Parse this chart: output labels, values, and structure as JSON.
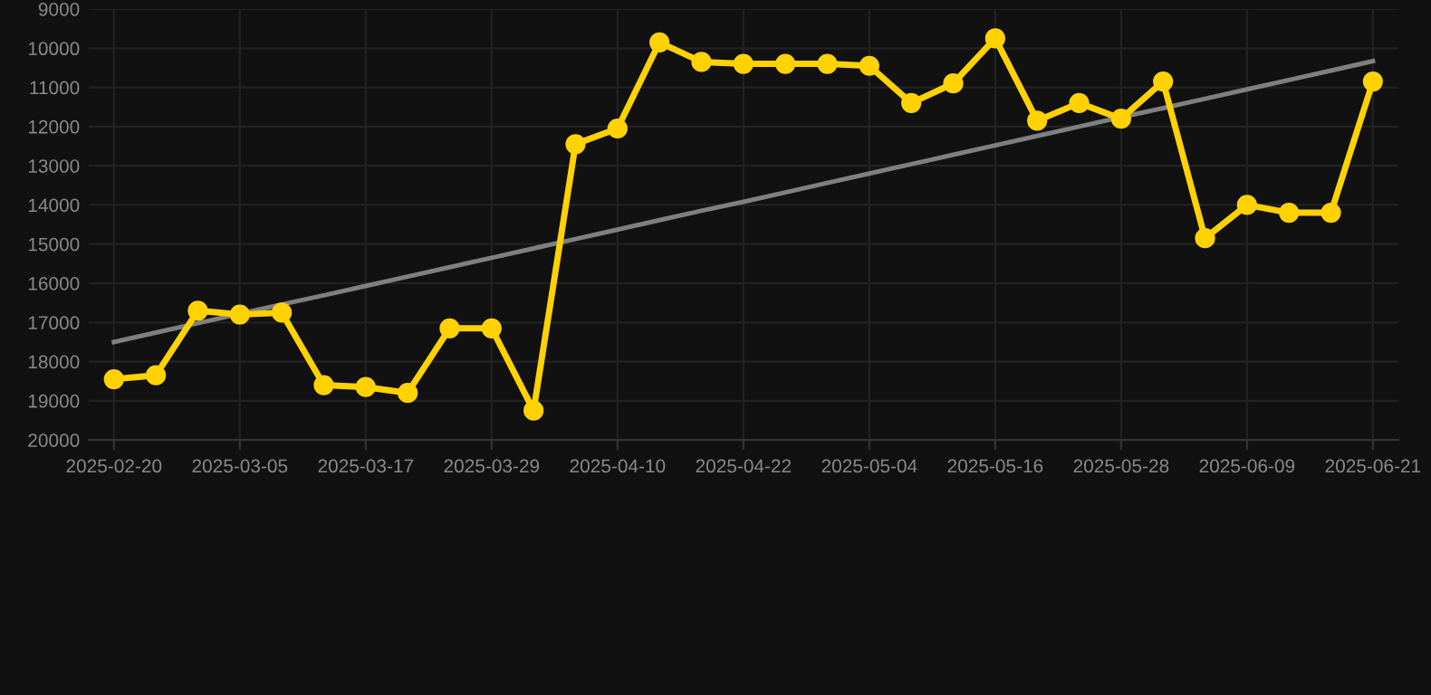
{
  "chart_data": {
    "type": "line",
    "categories": [
      "2025-02-20",
      null,
      null,
      "2025-03-05",
      null,
      null,
      "2025-03-17",
      null,
      null,
      "2025-03-29",
      null,
      null,
      "2025-04-10",
      null,
      null,
      "2025-04-22",
      null,
      null,
      "2025-05-04",
      null,
      null,
      "2025-05-16",
      null,
      null,
      "2025-05-28",
      null,
      null,
      "2025-06-09",
      null,
      null,
      "2025-06-21"
    ],
    "series": [
      {
        "color": "#ffd200",
        "marker": "circle",
        "values": [
          18450,
          18350,
          16700,
          16800,
          16750,
          18600,
          18650,
          18800,
          17150,
          17150,
          19250,
          12450,
          12050,
          9850,
          10350,
          10400,
          10400,
          10400,
          10450,
          11400,
          10900,
          9750,
          11850,
          11400,
          11800,
          10850,
          14850,
          14000,
          14200,
          14200,
          10850
        ]
      },
      {
        "type": "line",
        "color": "#808080",
        "marker": "none",
        "values": [
          17500,
          17260,
          17020,
          16780,
          16540,
          16310,
          16070,
          15830,
          15590,
          15350,
          15110,
          14870,
          14630,
          14390,
          14150,
          13920,
          13680,
          13440,
          13200,
          12960,
          12720,
          12480,
          12240,
          12000,
          11760,
          11530,
          11290,
          11050,
          10810,
          10570,
          10330
        ]
      }
    ],
    "ylim": [
      20000,
      9000
    ],
    "yticks": [
      9000,
      10000,
      11000,
      12000,
      13000,
      14000,
      15000,
      16000,
      17000,
      18000,
      19000,
      20000
    ],
    "grid": true
  }
}
